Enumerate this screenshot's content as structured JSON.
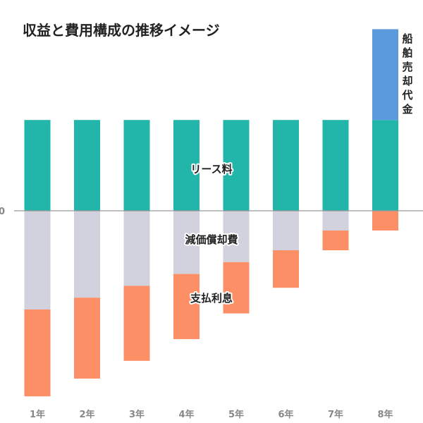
{
  "chart_data": {
    "type": "bar",
    "title": "収益と費用構成の推移イメージ",
    "xlabel": "",
    "ylabel": "",
    "y_tick_labels": [
      "0"
    ],
    "ylim": [
      -4.6,
      4.6
    ],
    "categories": [
      "1年",
      "2年",
      "3年",
      "4年",
      "5年",
      "6年",
      "7年",
      "8年"
    ],
    "series": [
      {
        "name": "リース料",
        "stack": "positive",
        "color": "#22b5aa",
        "values": [
          2.3,
          2.3,
          2.3,
          2.3,
          2.3,
          2.3,
          2.3,
          2.3
        ]
      },
      {
        "name": "船舶売却代金",
        "stack": "positive",
        "color": "#5b9bdd",
        "values": [
          0,
          0,
          0,
          0,
          0,
          0,
          0,
          2.3
        ]
      },
      {
        "name": "減価償却費",
        "stack": "negative",
        "color": "#d2d2de",
        "values": [
          2.5,
          2.2,
          1.9,
          1.6,
          1.3,
          1.0,
          0.5,
          0
        ]
      },
      {
        "name": "支払利息",
        "stack": "negative",
        "color": "#fd8f66",
        "values": [
          2.2,
          2.05,
          1.9,
          1.65,
          1.3,
          0.95,
          0.5,
          0.5
        ]
      }
    ],
    "annotations": [
      "リース料",
      "減価償却費",
      "支払利息",
      "船舶売却代金"
    ],
    "grid": false,
    "legend": "none"
  }
}
